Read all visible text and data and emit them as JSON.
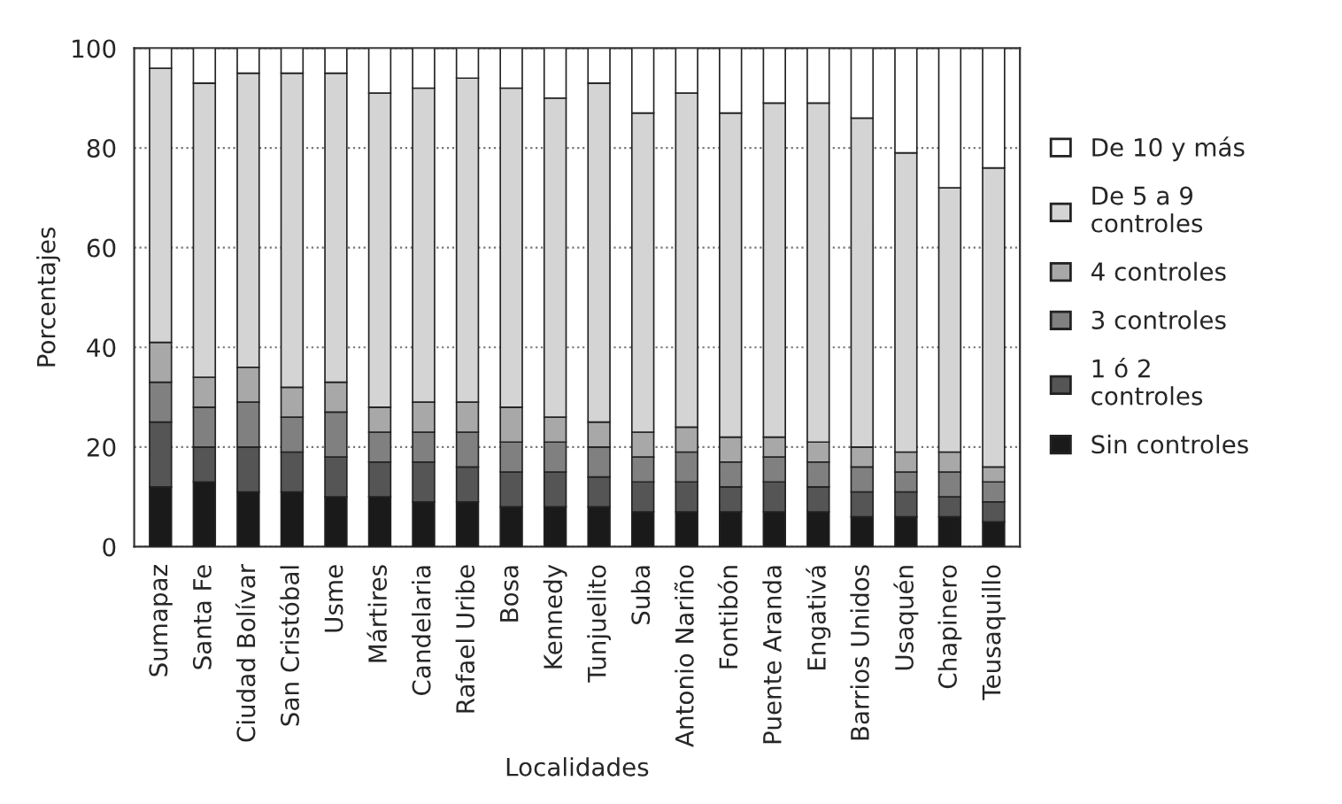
{
  "chart_data": {
    "type": "bar",
    "stacked": true,
    "xlabel": "Localidades",
    "ylabel": "Porcentajes",
    "categories": [
      "Sumapaz",
      "Santa Fe",
      "Ciudad Bolívar",
      "San Cristóbal",
      "Usme",
      "Mártires",
      "Candelaria",
      "Rafael Uribe",
      "Bosa",
      "Kennedy",
      "Tunjuelito",
      "Suba",
      "Antonio Nariño",
      "Fontibón",
      "Puente Aranda",
      "Engativá",
      "Barrios Unidos",
      "Usaquén",
      "Chapinero",
      "Teusaquillo"
    ],
    "series": [
      {
        "name": "Sin controles",
        "color": "#1a1a1a",
        "values": [
          12,
          13,
          11,
          11,
          10,
          10,
          9,
          9,
          8,
          8,
          8,
          7,
          7,
          7,
          7,
          7,
          6,
          6,
          6,
          5
        ]
      },
      {
        "name": "1 ó 2\ncontroles",
        "color": "#555555",
        "values": [
          13,
          7,
          9,
          8,
          8,
          7,
          8,
          7,
          7,
          7,
          6,
          6,
          6,
          5,
          6,
          5,
          5,
          5,
          4,
          4
        ]
      },
      {
        "name": "3 controles",
        "color": "#808080",
        "values": [
          8,
          8,
          9,
          7,
          9,
          6,
          6,
          7,
          6,
          6,
          6,
          5,
          6,
          5,
          5,
          5,
          5,
          4,
          5,
          4
        ]
      },
      {
        "name": "4 controles",
        "color": "#a8a8a8",
        "values": [
          8,
          6,
          7,
          6,
          6,
          5,
          6,
          6,
          7,
          5,
          5,
          5,
          5,
          5,
          4,
          4,
          4,
          4,
          4,
          3
        ]
      },
      {
        "name": "De 5 a 9\ncontroles",
        "color": "#d4d4d4",
        "values": [
          55,
          59,
          59,
          63,
          62,
          63,
          63,
          65,
          64,
          64,
          68,
          64,
          67,
          65,
          67,
          68,
          66,
          60,
          53,
          60
        ]
      },
      {
        "name": "De 10 y más",
        "color": "#ffffff",
        "values": [
          4,
          7,
          5,
          5,
          5,
          9,
          8,
          6,
          8,
          10,
          7,
          13,
          9,
          13,
          11,
          11,
          14,
          21,
          28,
          24
        ]
      }
    ],
    "ylim": [
      0,
      100
    ],
    "yticks": [
      0,
      20,
      40,
      60,
      80,
      100
    ],
    "grid": "y",
    "legend": "right"
  }
}
